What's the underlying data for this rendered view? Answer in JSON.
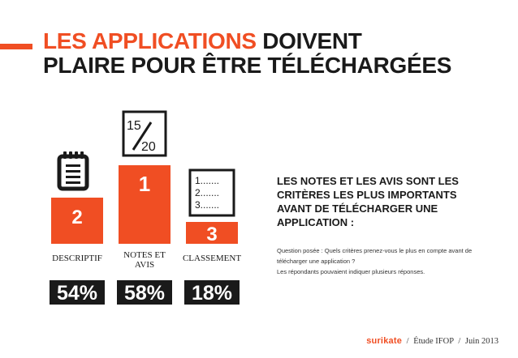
{
  "title": {
    "highlight": "LES APPLICATIONS",
    "rest_line1": " DOIVENT",
    "line2": "PLAIRE POUR ÊTRE TÉLÉCHARGÉES"
  },
  "colors": {
    "accent": "#f04e23",
    "dark": "#1a1a1a",
    "white": "#ffffff"
  },
  "chart_data": {
    "type": "bar",
    "title": "LES APPLICATIONS DOIVENT PLAIRE POUR ÊTRE TÉLÉCHARGÉES",
    "categories": [
      "DESCRIPTIF",
      "NOTES ET AVIS",
      "CLASSEMENT"
    ],
    "label_lines": [
      [
        "DESCRIPTIF"
      ],
      [
        "NOTES ET",
        "AVIS"
      ],
      [
        "CLASSEMENT"
      ]
    ],
    "ranks": [
      "2",
      "1",
      "3"
    ],
    "values": [
      54,
      58,
      18
    ],
    "value_labels": [
      "54%",
      "58%",
      "18%"
    ],
    "icons": [
      "notepad-icon",
      "score-card-icon",
      "ranked-list-icon"
    ],
    "icon_texts": {
      "score_top": "15",
      "score_bottom": "20",
      "list": [
        "1.......",
        "2.......",
        "3......."
      ]
    },
    "style": "podium"
  },
  "right": {
    "subhead_lines": [
      "LES NOTES ET LES AVIS SONT LES",
      "CRITÈRES LES PLUS IMPORTANTS",
      "AVANT DE TÉLÉCHARGER UNE",
      "APPLICATION :"
    ],
    "question_lines": [
      "Question posée : Quels critères prenez-vous le plus en compte avant de",
      "télécharger une application ?"
    ],
    "note": "Les répondants pouvaient indiquer plusieurs réponses."
  },
  "footer": {
    "brand": "surikate",
    "study": "Étude IFOP",
    "date": "Juin 2013",
    "separator": "/"
  }
}
